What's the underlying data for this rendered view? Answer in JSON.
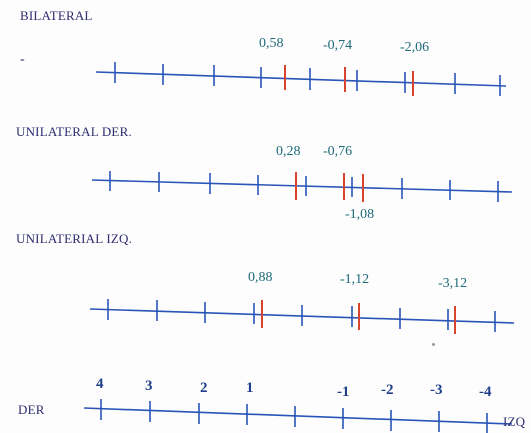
{
  "sections": [
    {
      "title": "BILATERAL",
      "values": [
        "0,58",
        "-0,74",
        "-2,06"
      ],
      "dash": "-"
    },
    {
      "title": "UNILATERAL DER.",
      "values": [
        "0,28",
        "-0,76",
        "-1,08"
      ]
    },
    {
      "title": "UNILATERIAL IZQ.",
      "values": [
        "0,88",
        "-1,12",
        "-3,12"
      ]
    }
  ],
  "bottom": {
    "left_label": "DER",
    "right_label": "IZQ",
    "ticks": [
      "4",
      "3",
      "2",
      "1",
      "-1",
      "-2",
      "-3",
      "-4"
    ]
  },
  "colors": {
    "line": "#2a55b8",
    "marker": "#d8452f"
  }
}
